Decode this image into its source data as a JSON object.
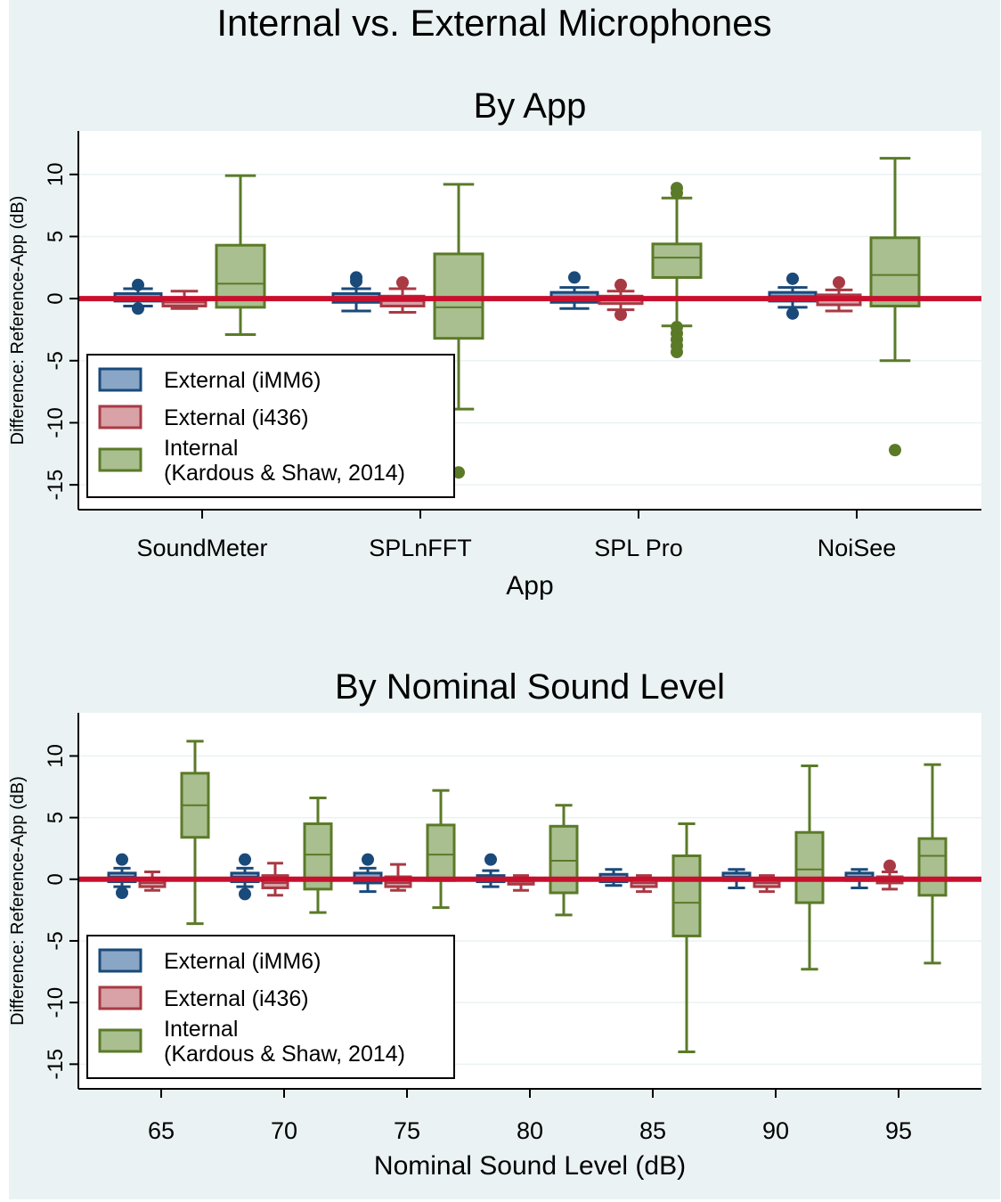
{
  "figure": {
    "title": "Internal vs. External Microphones",
    "colors": {
      "external_imm6": "#1a4a7a",
      "external_imm6_fill": "#8aa6c6",
      "external_i436": "#a83a44",
      "external_i436_fill": "#d8a2a6",
      "internal": "#5b7a28",
      "internal_fill": "#a9bf8f",
      "reference_line": "#c8102e",
      "background": "#eaf2f3"
    }
  },
  "chart_data": [
    {
      "type": "boxplot",
      "title": "By App",
      "xlabel": "App",
      "ylabel": "Difference: Reference-App (dB)",
      "ylim": [
        -17,
        13.5
      ],
      "yticks": [
        10,
        5,
        0,
        -5,
        -10,
        -15
      ],
      "ytick_labels": [
        "10",
        "5",
        "0",
        "-5",
        "-10",
        "-15"
      ],
      "categories": [
        "SoundMeter",
        "SPLnFFT",
        "SPL Pro",
        "NoiSee"
      ],
      "legend": {
        "position": "bottom-left",
        "entries": [
          "External (iMM6)",
          "External (i436)",
          "Internal",
          "(Kardous & Shaw, 2014)"
        ]
      },
      "series": [
        {
          "name": "External (iMM6)",
          "boxes": [
            {
              "whislo": -0.6,
              "q1": -0.2,
              "med": 0.1,
              "q3": 0.4,
              "whishi": 0.8,
              "fliers": [
                1.1,
                -0.8
              ]
            },
            {
              "whislo": -1.0,
              "q1": -0.3,
              "med": 0.0,
              "q3": 0.4,
              "whishi": 0.8,
              "fliers": [
                1.7,
                1.4
              ]
            },
            {
              "whislo": -0.8,
              "q1": -0.3,
              "med": 0.1,
              "q3": 0.5,
              "whishi": 0.9,
              "fliers": [
                1.7
              ]
            },
            {
              "whislo": -0.7,
              "q1": -0.2,
              "med": 0.2,
              "q3": 0.5,
              "whishi": 0.9,
              "fliers": [
                1.6,
                -1.2
              ]
            }
          ]
        },
        {
          "name": "External (i436)",
          "boxes": [
            {
              "whislo": -0.8,
              "q1": -0.6,
              "med": -0.3,
              "q3": 0.0,
              "whishi": 0.6,
              "fliers": []
            },
            {
              "whislo": -1.1,
              "q1": -0.6,
              "med": -0.2,
              "q3": 0.2,
              "whishi": 0.8,
              "fliers": [
                1.3
              ]
            },
            {
              "whislo": -0.9,
              "q1": -0.4,
              "med": -0.1,
              "q3": 0.2,
              "whishi": 0.6,
              "fliers": [
                1.1,
                -1.3
              ]
            },
            {
              "whislo": -1.0,
              "q1": -0.5,
              "med": -0.1,
              "q3": 0.3,
              "whishi": 0.7,
              "fliers": [
                1.3
              ]
            }
          ]
        },
        {
          "name": "Internal",
          "boxes": [
            {
              "whislo": -2.9,
              "q1": -0.7,
              "med": 1.2,
              "q3": 4.3,
              "whishi": 9.9,
              "fliers": []
            },
            {
              "whislo": -8.9,
              "q1": -3.2,
              "med": -0.7,
              "q3": 3.6,
              "whishi": 9.2,
              "fliers": [
                -14.0
              ]
            },
            {
              "whislo": -2.2,
              "q1": 1.7,
              "med": 3.3,
              "q3": 4.4,
              "whishi": 8.1,
              "fliers": [
                8.9,
                8.5,
                -2.3,
                -2.8,
                -3.3,
                -3.8,
                -4.3
              ]
            },
            {
              "whislo": -5.0,
              "q1": -0.6,
              "med": 1.9,
              "q3": 4.9,
              "whishi": 11.3,
              "fliers": [
                -12.2
              ]
            }
          ]
        }
      ]
    },
    {
      "type": "boxplot",
      "title": "By Nominal Sound Level",
      "xlabel": "Nominal Sound Level (dB)",
      "ylabel": "Difference: Reference-App (dB)",
      "ylim": [
        -17,
        13.5
      ],
      "yticks": [
        10,
        5,
        0,
        -5,
        -10,
        -15
      ],
      "ytick_labels": [
        "10",
        "5",
        "0",
        "-5",
        "-10",
        "-15"
      ],
      "categories": [
        "65",
        "70",
        "75",
        "80",
        "85",
        "90",
        "95"
      ],
      "legend": {
        "position": "bottom-left",
        "entries": [
          "External (iMM6)",
          "External (i436)",
          "Internal",
          "(Kardous & Shaw, 2014)"
        ]
      },
      "series": [
        {
          "name": "External (iMM6)",
          "boxes": [
            {
              "whislo": -0.6,
              "q1": -0.2,
              "med": 0.2,
              "q3": 0.5,
              "whishi": 0.9,
              "fliers": [
                1.6,
                -1.1
              ]
            },
            {
              "whislo": -0.6,
              "q1": -0.2,
              "med": 0.2,
              "q3": 0.5,
              "whishi": 0.9,
              "fliers": [
                1.6,
                -1.2
              ]
            },
            {
              "whislo": -1.0,
              "q1": -0.3,
              "med": 0.1,
              "q3": 0.5,
              "whishi": 0.9,
              "fliers": [
                1.6
              ]
            },
            {
              "whislo": -0.6,
              "q1": -0.2,
              "med": 0.1,
              "q3": 0.3,
              "whishi": 0.7,
              "fliers": [
                1.6
              ]
            },
            {
              "whislo": -0.5,
              "q1": -0.2,
              "med": 0.1,
              "q3": 0.4,
              "whishi": 0.8,
              "fliers": []
            },
            {
              "whislo": -0.7,
              "q1": -0.1,
              "med": 0.2,
              "q3": 0.5,
              "whishi": 0.8,
              "fliers": []
            },
            {
              "whislo": -0.7,
              "q1": -0.1,
              "med": 0.2,
              "q3": 0.5,
              "whishi": 0.8,
              "fliers": []
            }
          ]
        },
        {
          "name": "External (i436)",
          "boxes": [
            {
              "whislo": -0.9,
              "q1": -0.6,
              "med": -0.3,
              "q3": 0.1,
              "whishi": 0.6,
              "fliers": []
            },
            {
              "whislo": -1.3,
              "q1": -0.7,
              "med": -0.3,
              "q3": 0.3,
              "whishi": 1.3,
              "fliers": []
            },
            {
              "whislo": -0.9,
              "q1": -0.6,
              "med": -0.3,
              "q3": 0.2,
              "whishi": 1.2,
              "fliers": []
            },
            {
              "whislo": -0.9,
              "q1": -0.4,
              "med": -0.2,
              "q3": 0.1,
              "whishi": 0.3,
              "fliers": []
            },
            {
              "whislo": -1.0,
              "q1": -0.6,
              "med": -0.3,
              "q3": 0.0,
              "whishi": 0.3,
              "fliers": []
            },
            {
              "whislo": -1.0,
              "q1": -0.6,
              "med": -0.3,
              "q3": 0.0,
              "whishi": 0.3,
              "fliers": []
            },
            {
              "whislo": -0.8,
              "q1": -0.3,
              "med": 0.0,
              "q3": 0.2,
              "whishi": 0.6,
              "fliers": [
                1.1
              ]
            }
          ]
        },
        {
          "name": "Internal",
          "boxes": [
            {
              "whislo": -3.6,
              "q1": 3.4,
              "med": 6.0,
              "q3": 8.6,
              "whishi": 11.2,
              "fliers": []
            },
            {
              "whislo": -2.7,
              "q1": -0.8,
              "med": 2.0,
              "q3": 4.5,
              "whishi": 6.6,
              "fliers": []
            },
            {
              "whislo": -2.3,
              "q1": -0.1,
              "med": 2.0,
              "q3": 4.4,
              "whishi": 7.2,
              "fliers": []
            },
            {
              "whislo": -2.9,
              "q1": -1.1,
              "med": 1.5,
              "q3": 4.3,
              "whishi": 6.0,
              "fliers": []
            },
            {
              "whislo": -14.0,
              "q1": -4.6,
              "med": -1.9,
              "q3": 1.9,
              "whishi": 4.5,
              "fliers": []
            },
            {
              "whislo": -7.3,
              "q1": -1.9,
              "med": 0.8,
              "q3": 3.8,
              "whishi": 9.2,
              "fliers": []
            },
            {
              "whislo": -6.8,
              "q1": -1.3,
              "med": 1.9,
              "q3": 3.3,
              "whishi": 9.3,
              "fliers": []
            }
          ]
        }
      ]
    }
  ]
}
